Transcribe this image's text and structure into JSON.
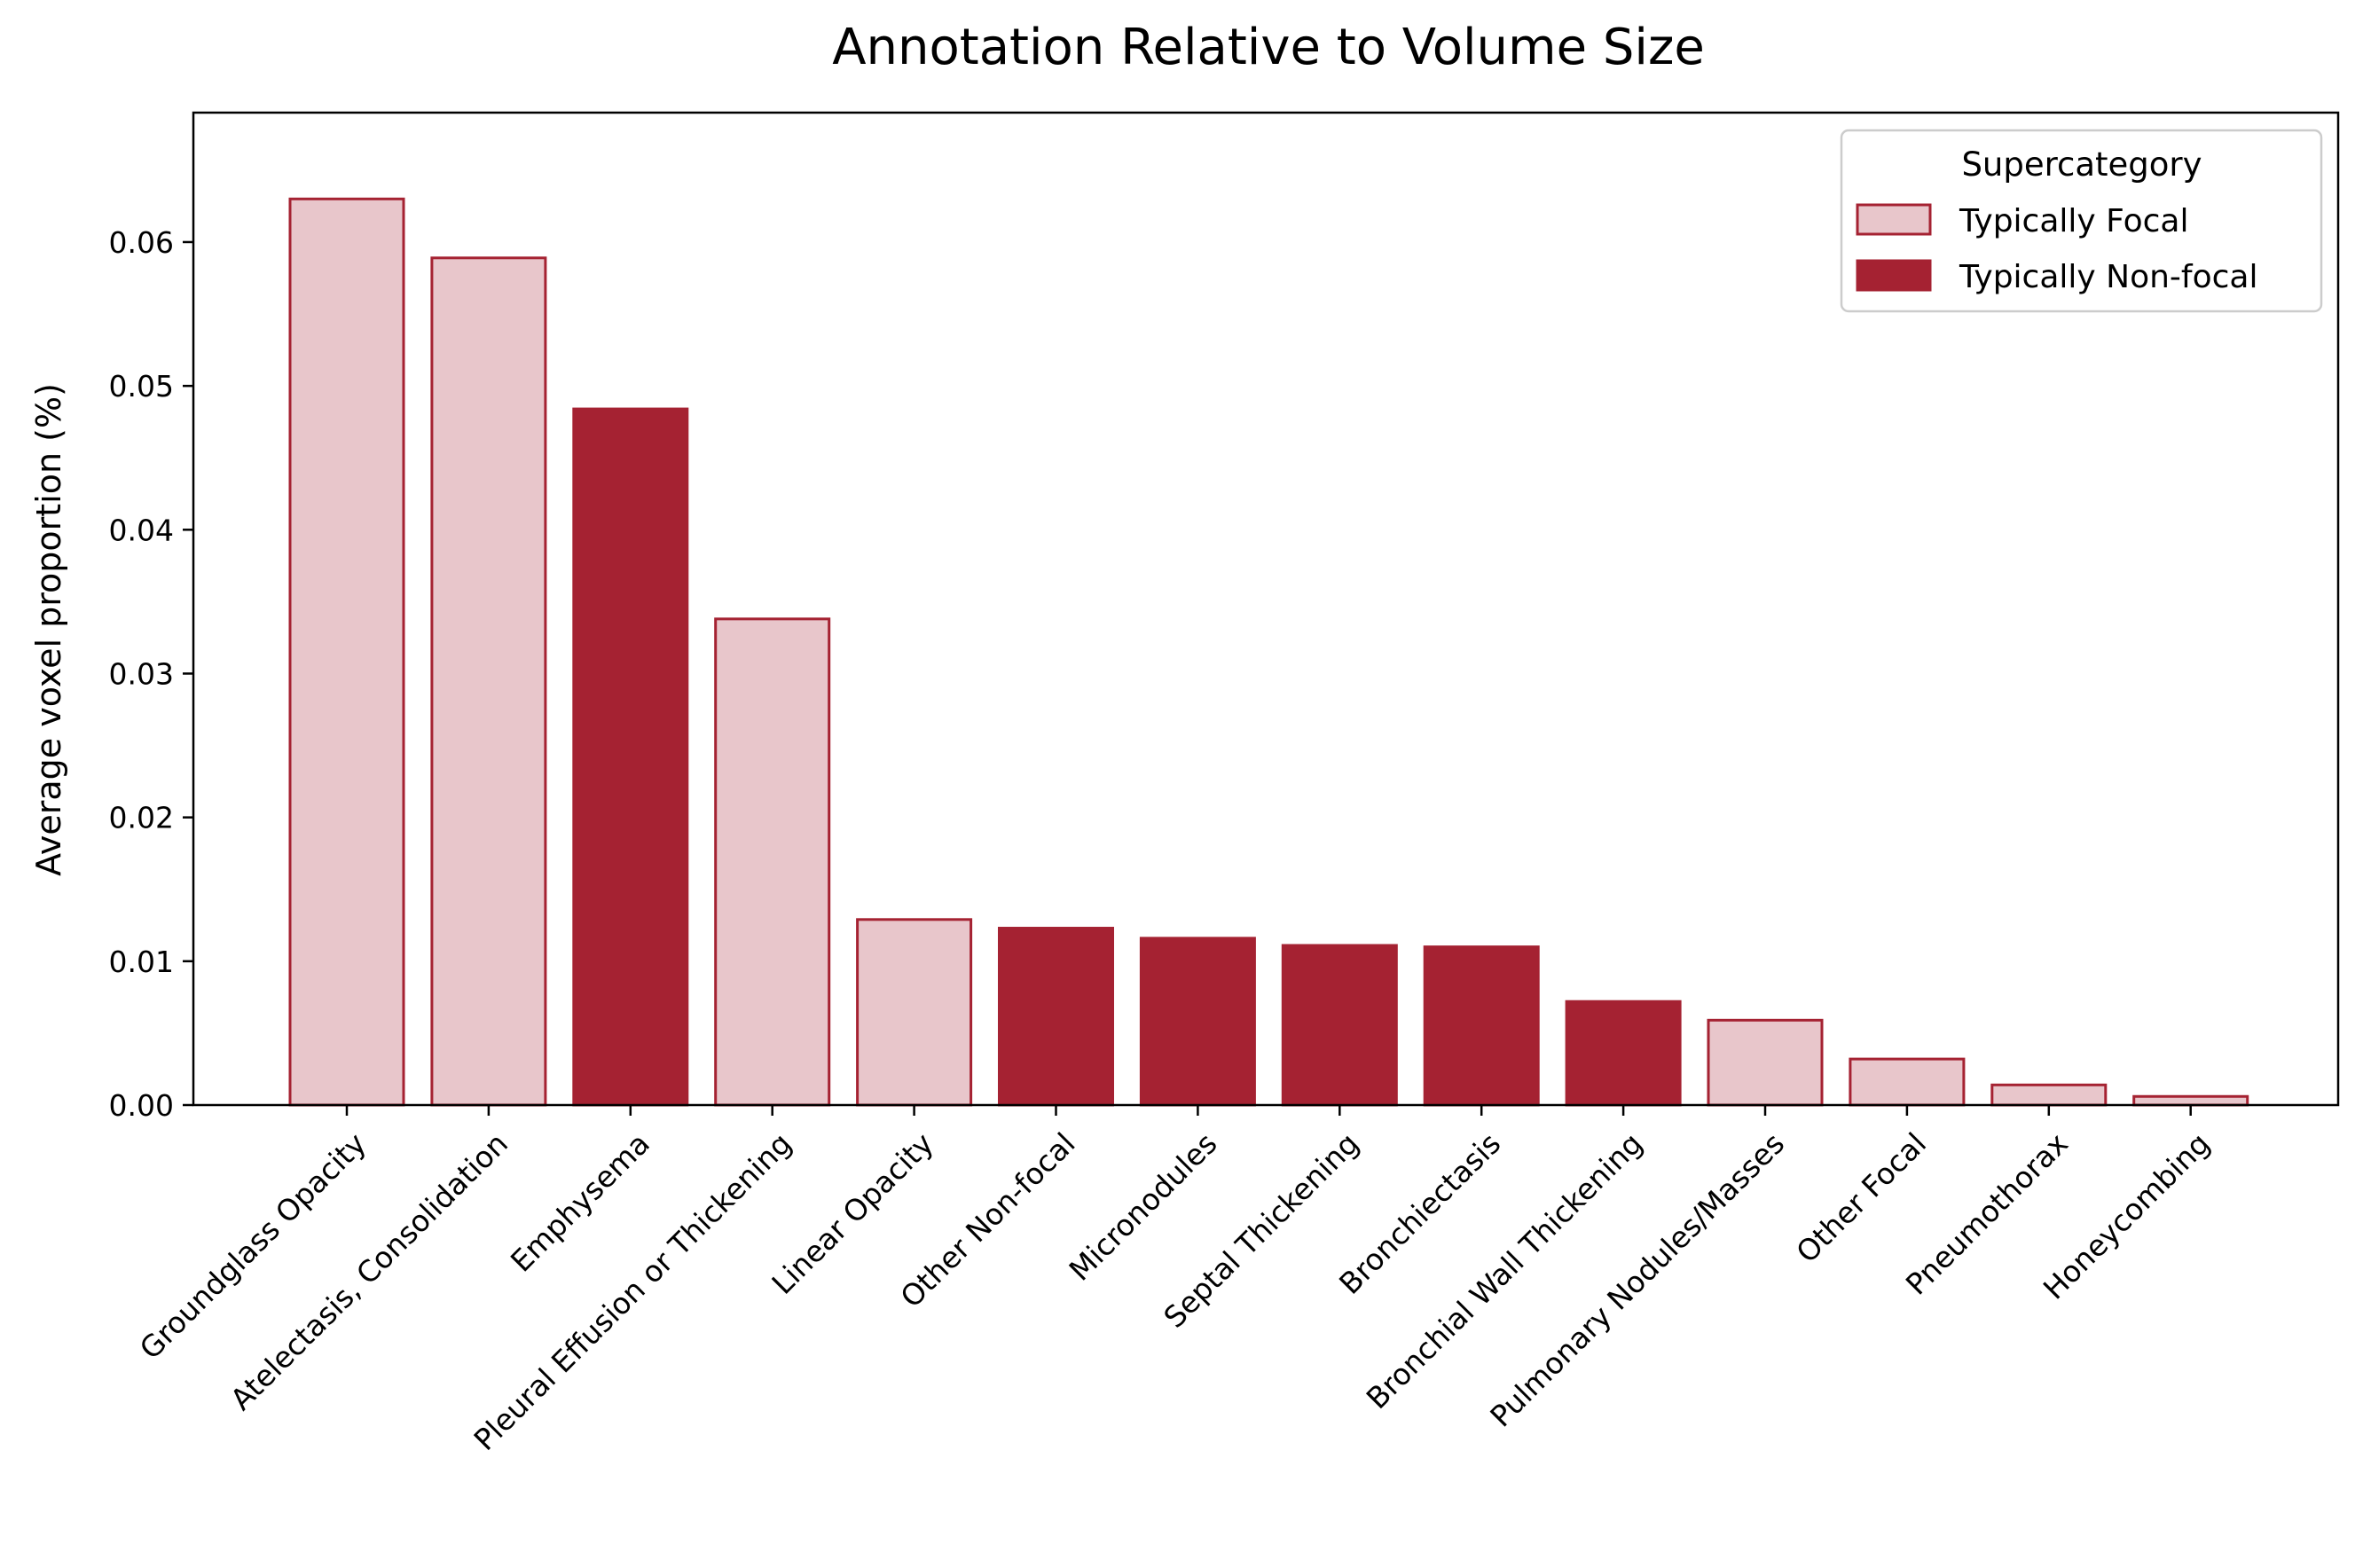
{
  "chart_data": {
    "type": "bar",
    "title": "Annotation Relative to Volume Size",
    "xlabel": "",
    "ylabel": "Average voxel proportion (%)",
    "ylim": [
      0,
      0.069
    ],
    "yticks": [
      0.0,
      0.01,
      0.02,
      0.03,
      0.04,
      0.05,
      0.06
    ],
    "ytick_labels": [
      "0.00",
      "0.01",
      "0.02",
      "0.03",
      "0.04",
      "0.05",
      "0.06"
    ],
    "categories": [
      "Groundglass Opacity",
      "Atelectasis, Consolidation",
      "Emphysema",
      "Pleural Effusion or Thickening",
      "Linear Opacity",
      "Other Non-focal",
      "Micronodules",
      "Septal Thickening",
      "Bronchiectasis",
      "Bronchial Wall Thickening",
      "Pulmonary Nodules/Masses",
      "Other Focal",
      "Pneumothorax",
      "Honeycombing"
    ],
    "values": [
      0.063,
      0.0589,
      0.0484,
      0.0338,
      0.0129,
      0.0123,
      0.0116,
      0.0111,
      0.011,
      0.0072,
      0.0059,
      0.0032,
      0.0014,
      0.0006
    ],
    "supercategory": [
      "focal",
      "focal",
      "nonfocal",
      "focal",
      "focal",
      "nonfocal",
      "nonfocal",
      "nonfocal",
      "nonfocal",
      "nonfocal",
      "focal",
      "focal",
      "focal",
      "focal"
    ],
    "legend": {
      "title": "Supercategory",
      "placement": "top-right",
      "entries": [
        {
          "key": "focal",
          "label": "Typically Focal"
        },
        {
          "key": "nonfocal",
          "label": "Typically Non-focal"
        }
      ]
    },
    "colors": {
      "focal_fill": "#e8c6cb",
      "focal_edge": "#a52232",
      "nonfocal_fill": "#a52232",
      "nonfocal_edge": "#a52232"
    },
    "grid": false
  }
}
